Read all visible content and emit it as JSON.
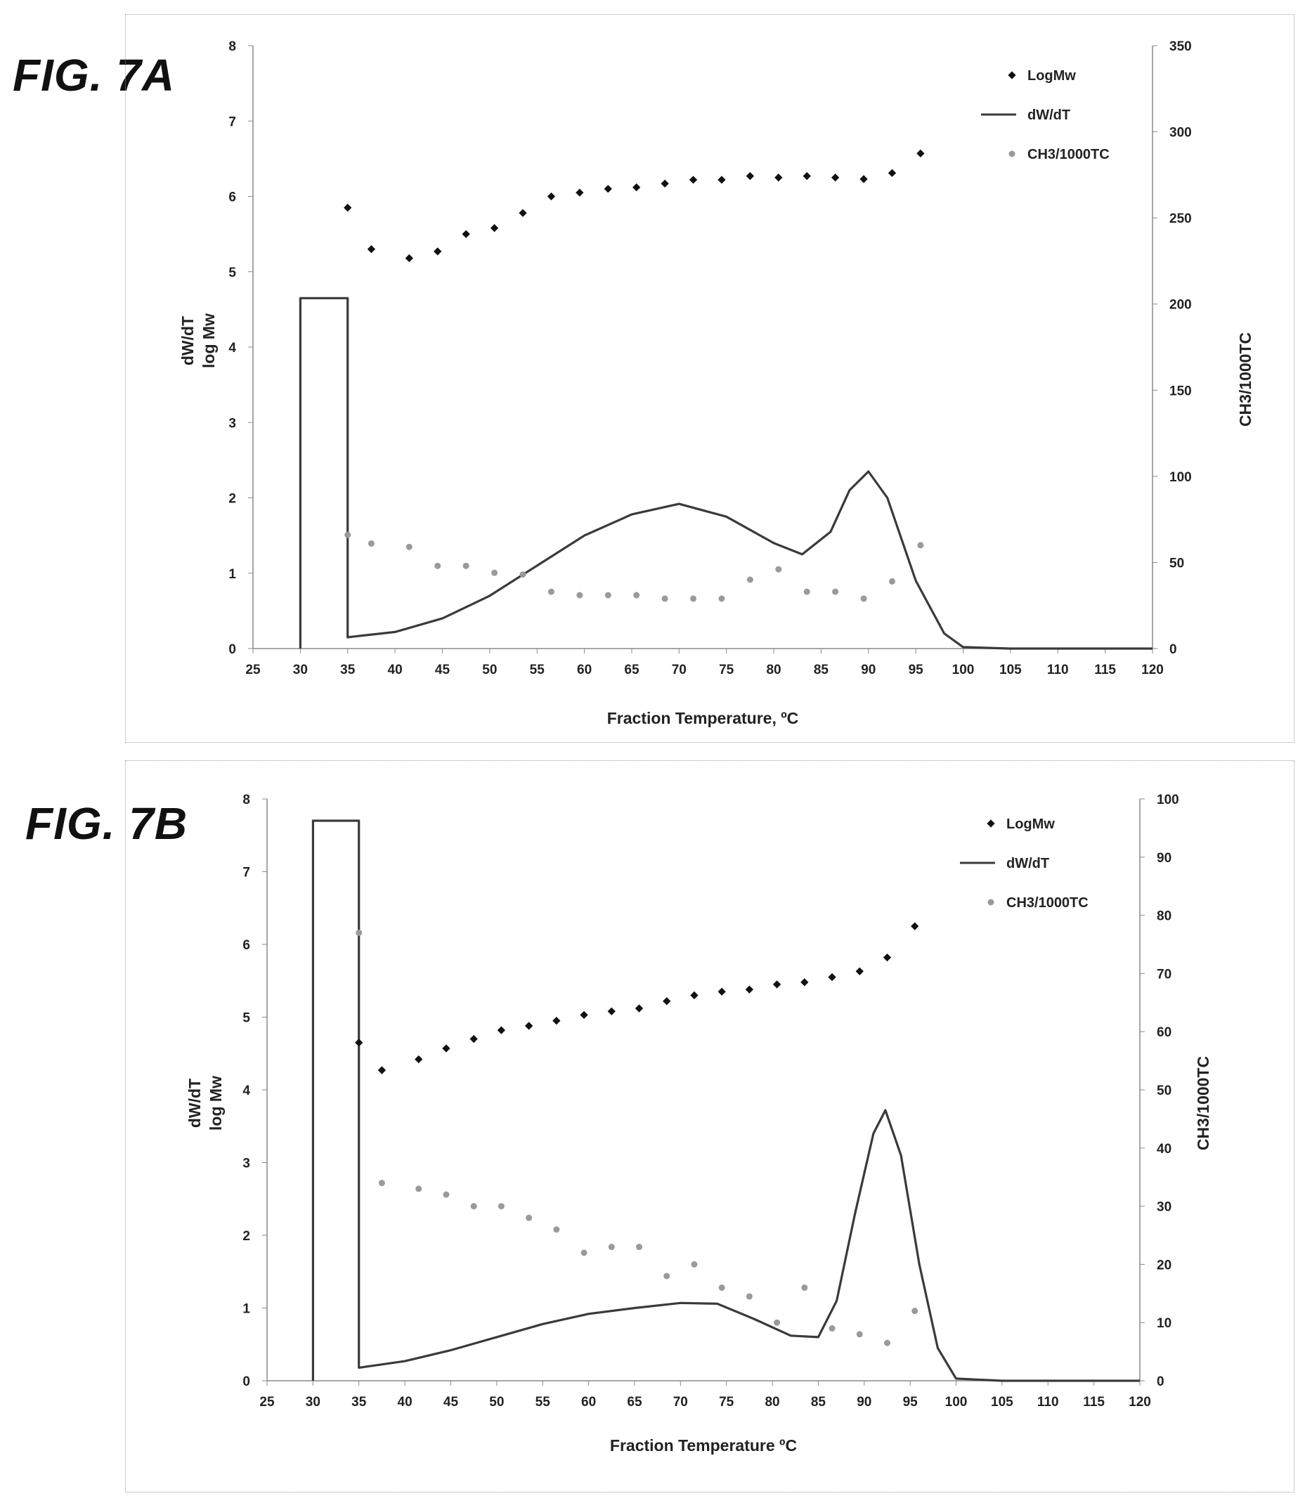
{
  "figures": [
    {
      "label": "FIG. 7A"
    },
    {
      "label": "FIG. 7B"
    }
  ],
  "chart_data": [
    {
      "type": "line",
      "xlabel": "Fraction Temperature, ºC",
      "ylabel_left": [
        "dW/dT",
        "log Mw"
      ],
      "ylabel_right": "CH3/1000TC",
      "xlim": [
        25,
        120
      ],
      "ylim_left": [
        0,
        8
      ],
      "ylim_right": [
        0,
        350
      ],
      "x_ticks": [
        "25",
        "30",
        "35",
        "40",
        "45",
        "50",
        "55",
        "60",
        "65",
        "70",
        "75",
        "80",
        "85",
        "90",
        "95",
        "100",
        "105",
        "110",
        "115",
        "120"
      ],
      "y_left_ticks": [
        "0",
        "1",
        "2",
        "3",
        "4",
        "5",
        "6",
        "7",
        "8"
      ],
      "y_right_ticks": [
        "0",
        "50",
        "100",
        "150",
        "200",
        "250",
        "300",
        "350"
      ],
      "legend": [
        "LogMw",
        "dW/dT",
        "CH3/1000TC"
      ],
      "legend_position": "top-right",
      "grid": false,
      "series": [
        {
          "name": "dW/dT",
          "axis": "left",
          "kind": "line",
          "color": "#3a3a3a",
          "x": [
            30,
            30,
            35,
            35,
            40,
            45,
            50,
            55,
            60,
            65,
            70,
            75,
            80,
            83,
            86,
            88,
            90,
            92,
            95,
            98,
            100,
            105,
            110,
            115,
            120
          ],
          "y": [
            0,
            4.65,
            4.65,
            0.15,
            0.22,
            0.4,
            0.7,
            1.1,
            1.5,
            1.78,
            1.92,
            1.75,
            1.4,
            1.25,
            1.55,
            2.1,
            2.35,
            2.0,
            0.9,
            0.2,
            0.02,
            0,
            0,
            0,
            0
          ]
        },
        {
          "name": "LogMw",
          "axis": "left",
          "kind": "scatter",
          "color": "#111111",
          "x": [
            35,
            37.5,
            41.5,
            44.5,
            47.5,
            50.5,
            53.5,
            56.5,
            59.5,
            62.5,
            65.5,
            68.5,
            71.5,
            74.5,
            77.5,
            80.5,
            83.5,
            86.5,
            89.5,
            92.5,
            95.5
          ],
          "y": [
            5.85,
            5.3,
            5.18,
            5.27,
            5.5,
            5.58,
            5.78,
            6.0,
            6.05,
            6.1,
            6.12,
            6.17,
            6.22,
            6.22,
            6.27,
            6.25,
            6.27,
            6.25,
            6.23,
            6.31,
            6.57
          ]
        },
        {
          "name": "CH3/1000TC",
          "axis": "right",
          "kind": "scatter",
          "color": "#9a9a9a",
          "x": [
            35,
            37.5,
            41.5,
            44.5,
            47.5,
            50.5,
            53.5,
            56.5,
            59.5,
            62.5,
            65.5,
            68.5,
            71.5,
            74.5,
            77.5,
            80.5,
            83.5,
            86.5,
            89.5,
            92.5,
            95.5
          ],
          "y": [
            66,
            61,
            59,
            48,
            48,
            44,
            43,
            33,
            31,
            31,
            31,
            29,
            29,
            29,
            40,
            46,
            33,
            33,
            29,
            39,
            60
          ]
        }
      ]
    },
    {
      "type": "line",
      "xlabel": "Fraction Temperature ºC",
      "ylabel_left": [
        "dW/dT",
        "log Mw"
      ],
      "ylabel_right": "CH3/1000TC",
      "xlim": [
        25,
        120
      ],
      "ylim_left": [
        0,
        8
      ],
      "ylim_right": [
        0,
        100
      ],
      "x_ticks": [
        "25",
        "30",
        "35",
        "40",
        "45",
        "50",
        "55",
        "60",
        "65",
        "70",
        "75",
        "80",
        "85",
        "90",
        "95",
        "100",
        "105",
        "110",
        "115",
        "120"
      ],
      "y_left_ticks": [
        "0",
        "1",
        "2",
        "3",
        "4",
        "5",
        "6",
        "7",
        "8"
      ],
      "y_right_ticks": [
        "0",
        "10",
        "20",
        "30",
        "40",
        "50",
        "60",
        "70",
        "80",
        "90",
        "100"
      ],
      "legend": [
        "LogMw",
        "dW/dT",
        "CH3/1000TC"
      ],
      "legend_position": "top-right",
      "grid": false,
      "series": [
        {
          "name": "dW/dT",
          "axis": "left",
          "kind": "line",
          "color": "#3a3a3a",
          "x": [
            30,
            30,
            35,
            35,
            40,
            45,
            50,
            55,
            60,
            65,
            70,
            74,
            78,
            82,
            85,
            87,
            89,
            91,
            92.3,
            94,
            96,
            98,
            100,
            105,
            110,
            115,
            120
          ],
          "y": [
            0,
            7.7,
            7.7,
            0.18,
            0.27,
            0.42,
            0.6,
            0.78,
            0.92,
            1.0,
            1.07,
            1.06,
            0.85,
            0.62,
            0.6,
            1.1,
            2.3,
            3.4,
            3.72,
            3.1,
            1.6,
            0.45,
            0.03,
            0,
            0,
            0,
            0
          ]
        },
        {
          "name": "LogMw",
          "axis": "left",
          "kind": "scatter",
          "color": "#111111",
          "x": [
            35,
            37.5,
            41.5,
            44.5,
            47.5,
            50.5,
            53.5,
            56.5,
            59.5,
            62.5,
            65.5,
            68.5,
            71.5,
            74.5,
            77.5,
            80.5,
            83.5,
            86.5,
            89.5,
            92.5,
            95.5
          ],
          "y": [
            4.65,
            4.27,
            4.42,
            4.57,
            4.7,
            4.82,
            4.88,
            4.95,
            5.03,
            5.08,
            5.12,
            5.22,
            5.3,
            5.35,
            5.38,
            5.45,
            5.48,
            5.55,
            5.63,
            5.82,
            6.25
          ]
        },
        {
          "name": "CH3/1000TC",
          "axis": "right",
          "kind": "scatter",
          "color": "#9a9a9a",
          "x": [
            35,
            37.5,
            41.5,
            44.5,
            47.5,
            50.5,
            53.5,
            56.5,
            59.5,
            62.5,
            65.5,
            68.5,
            71.5,
            74.5,
            77.5,
            80.5,
            83.5,
            86.5,
            89.5,
            92.5,
            95.5
          ],
          "y": [
            77,
            34,
            33,
            32,
            30,
            30,
            28,
            26,
            22,
            23,
            23,
            18,
            20,
            16,
            14.5,
            10,
            16,
            9,
            8,
            6.5,
            12
          ]
        }
      ]
    }
  ]
}
